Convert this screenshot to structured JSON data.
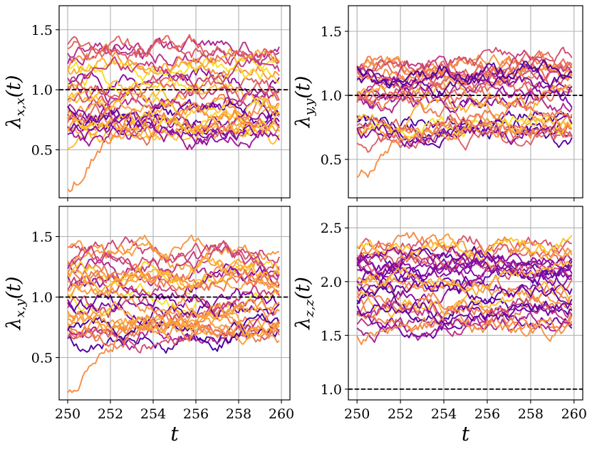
{
  "chart_data": [
    {
      "type": "line",
      "id": "xx",
      "ylabel": "λ_{x,x}(t)",
      "ylabel_main": "λ",
      "ylabel_sub": "x,x",
      "ylabel_tail": "(t)",
      "xlabel": "",
      "xlim": [
        249.6,
        260.4
      ],
      "ylim": [
        0.1,
        1.7
      ],
      "yticks": [
        0.5,
        1.0,
        1.5
      ],
      "ytick_labels": [
        "0.5",
        "1.0",
        "1.5"
      ],
      "xticks": [
        250,
        252,
        254,
        256,
        258,
        260
      ],
      "xtick_labels": [],
      "reference_line": 1.0,
      "grid": true,
      "series_count": 30,
      "mean_range": [
        0.55,
        1.35
      ],
      "seed": 11,
      "special_series": [
        {
          "start": 0.2,
          "end": 0.8,
          "name": "low-start series"
        }
      ]
    },
    {
      "type": "line",
      "id": "yy",
      "ylabel": "λ_{y,y}(t)",
      "ylabel_main": "λ",
      "ylabel_sub": "y,y",
      "ylabel_tail": "(t)",
      "xlabel": "",
      "xlim": [
        249.6,
        260.4
      ],
      "ylim": [
        0.2,
        1.7
      ],
      "yticks": [
        0.5,
        1.0,
        1.5
      ],
      "ytick_labels": [
        "0.5",
        "1.0",
        "1.5"
      ],
      "xticks": [
        250,
        252,
        254,
        256,
        258,
        260
      ],
      "xtick_labels": [],
      "reference_line": 1.0,
      "grid": true,
      "series_count": 30,
      "mean_range": [
        0.65,
        1.3
      ],
      "seed": 23,
      "special_series": [
        {
          "start": 0.35,
          "end": 0.75,
          "name": "low-start series"
        }
      ]
    },
    {
      "type": "line",
      "id": "xy",
      "ylabel": "λ_{x,y}(t)",
      "ylabel_main": "λ",
      "ylabel_sub": "x,y",
      "ylabel_tail": "(t)",
      "xlabel": "t",
      "xlim": [
        249.6,
        260.4
      ],
      "ylim": [
        0.15,
        1.75
      ],
      "yticks": [
        0.5,
        1.0,
        1.5
      ],
      "ytick_labels": [
        "0.5",
        "1.0",
        "1.5"
      ],
      "xticks": [
        250,
        252,
        254,
        256,
        258,
        260
      ],
      "xtick_labels": [
        "250",
        "252",
        "254",
        "256",
        "258",
        "260"
      ],
      "reference_line": 1.0,
      "grid": true,
      "series_count": 30,
      "mean_range": [
        0.6,
        1.4
      ],
      "seed": 37,
      "special_series": [
        {
          "start": 0.22,
          "end": 0.75,
          "name": "low-start series"
        }
      ]
    },
    {
      "type": "line",
      "id": "zz",
      "ylabel": "λ_{z,z}(t)",
      "ylabel_main": "λ",
      "ylabel_sub": "z,z",
      "ylabel_tail": "(t)",
      "xlabel": "t",
      "xlim": [
        249.6,
        260.4
      ],
      "ylim": [
        0.9,
        2.7
      ],
      "yticks": [
        1.0,
        1.5,
        2.0,
        2.5
      ],
      "ytick_labels": [
        "1.0",
        "1.5",
        "2.0",
        "2.5"
      ],
      "xticks": [
        250,
        252,
        254,
        256,
        258,
        260
      ],
      "xtick_labels": [
        "250",
        "252",
        "254",
        "256",
        "258",
        "260"
      ],
      "reference_line": 1.0,
      "grid": true,
      "series_count": 30,
      "mean_range": [
        1.5,
        2.35
      ],
      "seed": 53,
      "special_series": []
    }
  ],
  "x_range": [
    250,
    259.9
  ],
  "colormap": "plasma",
  "colormap_stops": [
    "#3a049a",
    "#6a00a8",
    "#9c179e",
    "#c13b82",
    "#e16462",
    "#f2844b",
    "#fca636",
    "#fcce25",
    "#f0f921"
  ],
  "reference_line_color": "#000000",
  "grid_color": "#b0b0b0"
}
